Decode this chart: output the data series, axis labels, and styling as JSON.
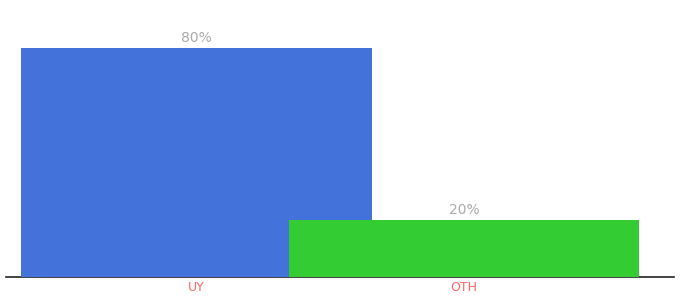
{
  "categories": [
    "UY",
    "OTH"
  ],
  "values": [
    80,
    20
  ],
  "bar_colors": [
    "#4472db",
    "#33cc33"
  ],
  "label_texts": [
    "80%",
    "20%"
  ],
  "label_color": "#aaaaaa",
  "label_fontsize": 10,
  "tick_fontsize": 9,
  "tick_color": "#ff6666",
  "background_color": "#ffffff",
  "ylim": [
    0,
    95
  ],
  "bar_width": 0.55,
  "bar_positions": [
    0.3,
    0.72
  ],
  "xlim": [
    0.0,
    1.05
  ],
  "figsize": [
    6.8,
    3.0
  ],
  "dpi": 100
}
